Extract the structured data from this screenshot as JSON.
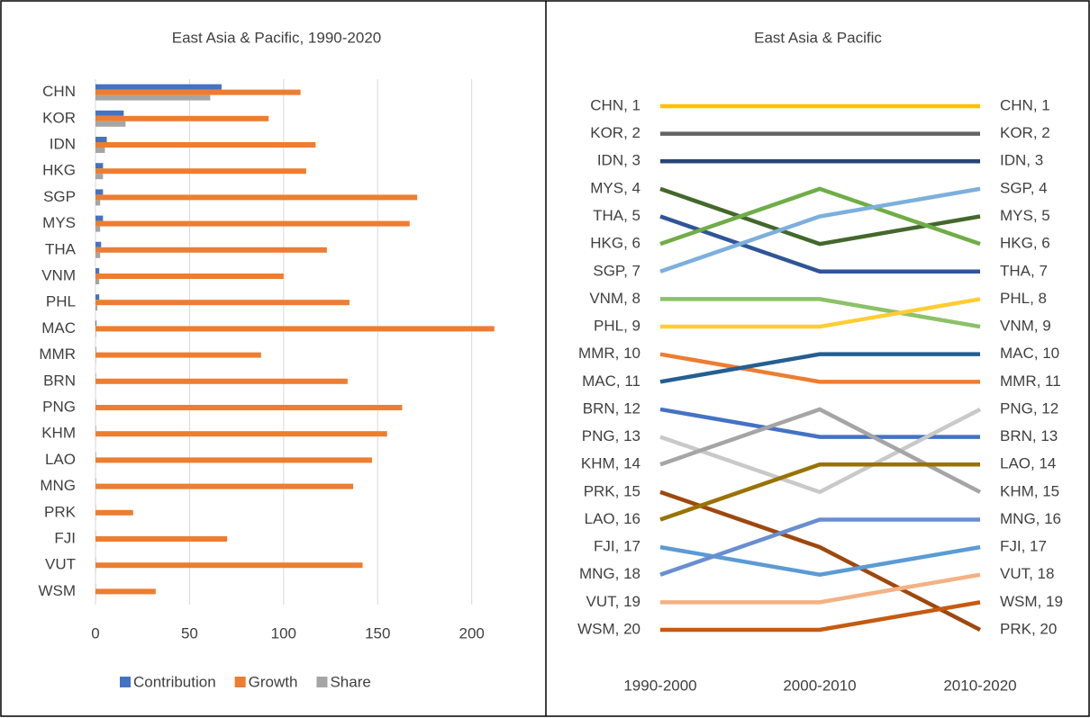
{
  "chart_data": [
    {
      "type": "hbar",
      "title": "East Asia & Pacific, 1990-2020",
      "categories": [
        "CHN",
        "KOR",
        "IDN",
        "HKG",
        "SGP",
        "MYS",
        "THA",
        "VNM",
        "PHL",
        "MAC",
        "MMR",
        "BRN",
        "PNG",
        "KHM",
        "LAO",
        "MNG",
        "PRK",
        "FJI",
        "VUT",
        "WSM"
      ],
      "series": [
        {
          "name": "Contribution",
          "color": "#4472c4",
          "values": [
            67,
            15,
            6,
            4,
            4,
            4,
            3,
            2,
            2,
            0.5,
            0.3,
            0.2,
            0.2,
            0.2,
            0.2,
            0.2,
            0.1,
            0.1,
            0.1,
            0.1
          ]
        },
        {
          "name": "Growth",
          "color": "#ed7d31",
          "values": [
            109,
            92,
            117,
            112,
            171,
            167,
            123,
            100,
            135,
            212,
            88,
            134,
            163,
            155,
            147,
            137,
            20,
            70,
            142,
            32
          ]
        },
        {
          "name": "Share",
          "color": "#a5a5a5",
          "values": [
            61,
            16,
            5,
            4,
            2.5,
            2.5,
            2.5,
            2,
            1,
            0.3,
            0.2,
            0.1,
            0.1,
            0.1,
            0.1,
            0.1,
            0.1,
            0.1,
            0.1,
            0.1
          ]
        }
      ],
      "xlim": [
        0,
        215
      ],
      "xticks": [
        0,
        50,
        100,
        150,
        200
      ],
      "grid": true,
      "legend": "bottom"
    },
    {
      "type": "bump",
      "title": "East Asia & Pacific",
      "categories": [
        "1990-2000",
        "2000-2010",
        "2010-2020"
      ],
      "ylim": [
        20,
        1
      ],
      "series": [
        {
          "name": "CHN",
          "color": "#ffc000",
          "values": [
            1,
            1,
            1
          ],
          "value_labels": [
            "CHN, 1",
            null,
            "CHN, 1"
          ]
        },
        {
          "name": "KOR",
          "color": "#636363",
          "values": [
            2,
            2,
            2
          ],
          "value_labels": [
            "KOR, 2",
            null,
            "KOR, 2"
          ]
        },
        {
          "name": "IDN",
          "color": "#264478",
          "values": [
            3,
            3,
            3
          ],
          "value_labels": [
            "IDN, 3",
            null,
            "IDN, 3"
          ]
        },
        {
          "name": "MYS",
          "color": "#43682b",
          "values": [
            4,
            6,
            5
          ],
          "value_labels": [
            "MYS, 4",
            null,
            "MYS, 5"
          ]
        },
        {
          "name": "THA",
          "color": "#2f5597",
          "values": [
            5,
            7,
            7
          ],
          "value_labels": [
            "THA, 5",
            null,
            "THA, 7"
          ]
        },
        {
          "name": "HKG",
          "color": "#70ad47",
          "values": [
            6,
            4,
            6
          ],
          "value_labels": [
            "HKG, 6",
            null,
            "HKG, 6"
          ]
        },
        {
          "name": "SGP",
          "color": "#7cafdd",
          "values": [
            7,
            5,
            4
          ],
          "value_labels": [
            "SGP, 7",
            null,
            "SGP, 4"
          ]
        },
        {
          "name": "VNM",
          "color": "#8cc168",
          "values": [
            8,
            8,
            9
          ],
          "value_labels": [
            "VNM, 8",
            null,
            "VNM, 9"
          ]
        },
        {
          "name": "PHL",
          "color": "#ffcd33",
          "values": [
            9,
            9,
            8
          ],
          "value_labels": [
            "PHL, 9",
            null,
            "PHL, 8"
          ]
        },
        {
          "name": "MMR",
          "color": "#ed7d31",
          "values": [
            10,
            11,
            11
          ],
          "value_labels": [
            "MMR, 10",
            null,
            "MMR, 11"
          ]
        },
        {
          "name": "MAC",
          "color": "#255e91",
          "values": [
            11,
            10,
            10
          ],
          "value_labels": [
            "MAC, 11",
            null,
            "MAC, 10"
          ]
        },
        {
          "name": "BRN",
          "color": "#4472c4",
          "values": [
            12,
            13,
            13
          ],
          "value_labels": [
            "BRN, 12",
            null,
            "BRN, 13"
          ]
        },
        {
          "name": "PNG",
          "color": "#c9c9c9",
          "values": [
            13,
            15,
            12
          ],
          "value_labels": [
            "PNG, 13",
            null,
            "PNG, 12"
          ]
        },
        {
          "name": "KHM",
          "color": "#a5a5a5",
          "values": [
            14,
            12,
            15
          ],
          "value_labels": [
            "KHM, 14",
            null,
            "KHM, 15"
          ]
        },
        {
          "name": "PRK",
          "color": "#9e480e",
          "values": [
            15,
            17,
            20
          ],
          "value_labels": [
            "PRK, 15",
            null,
            "PRK, 20"
          ]
        },
        {
          "name": "LAO",
          "color": "#997300",
          "values": [
            16,
            14,
            14
          ],
          "value_labels": [
            "LAO, 16",
            null,
            "LAO, 14"
          ]
        },
        {
          "name": "FJI",
          "color": "#5b9bd5",
          "values": [
            17,
            18,
            17
          ],
          "value_labels": [
            "FJI, 17",
            null,
            "FJI, 17"
          ]
        },
        {
          "name": "MNG",
          "color": "#698ed0",
          "values": [
            18,
            16,
            16
          ],
          "value_labels": [
            "MNG, 18",
            null,
            "MNG, 16"
          ]
        },
        {
          "name": "VUT",
          "color": "#f4b183",
          "values": [
            19,
            19,
            18
          ],
          "value_labels": [
            "VUT, 19",
            null,
            "VUT, 18"
          ]
        },
        {
          "name": "WSM",
          "color": "#c55a11",
          "values": [
            20,
            20,
            19
          ],
          "value_labels": [
            "WSM, 20",
            null,
            "WSM, 19"
          ]
        }
      ]
    }
  ]
}
